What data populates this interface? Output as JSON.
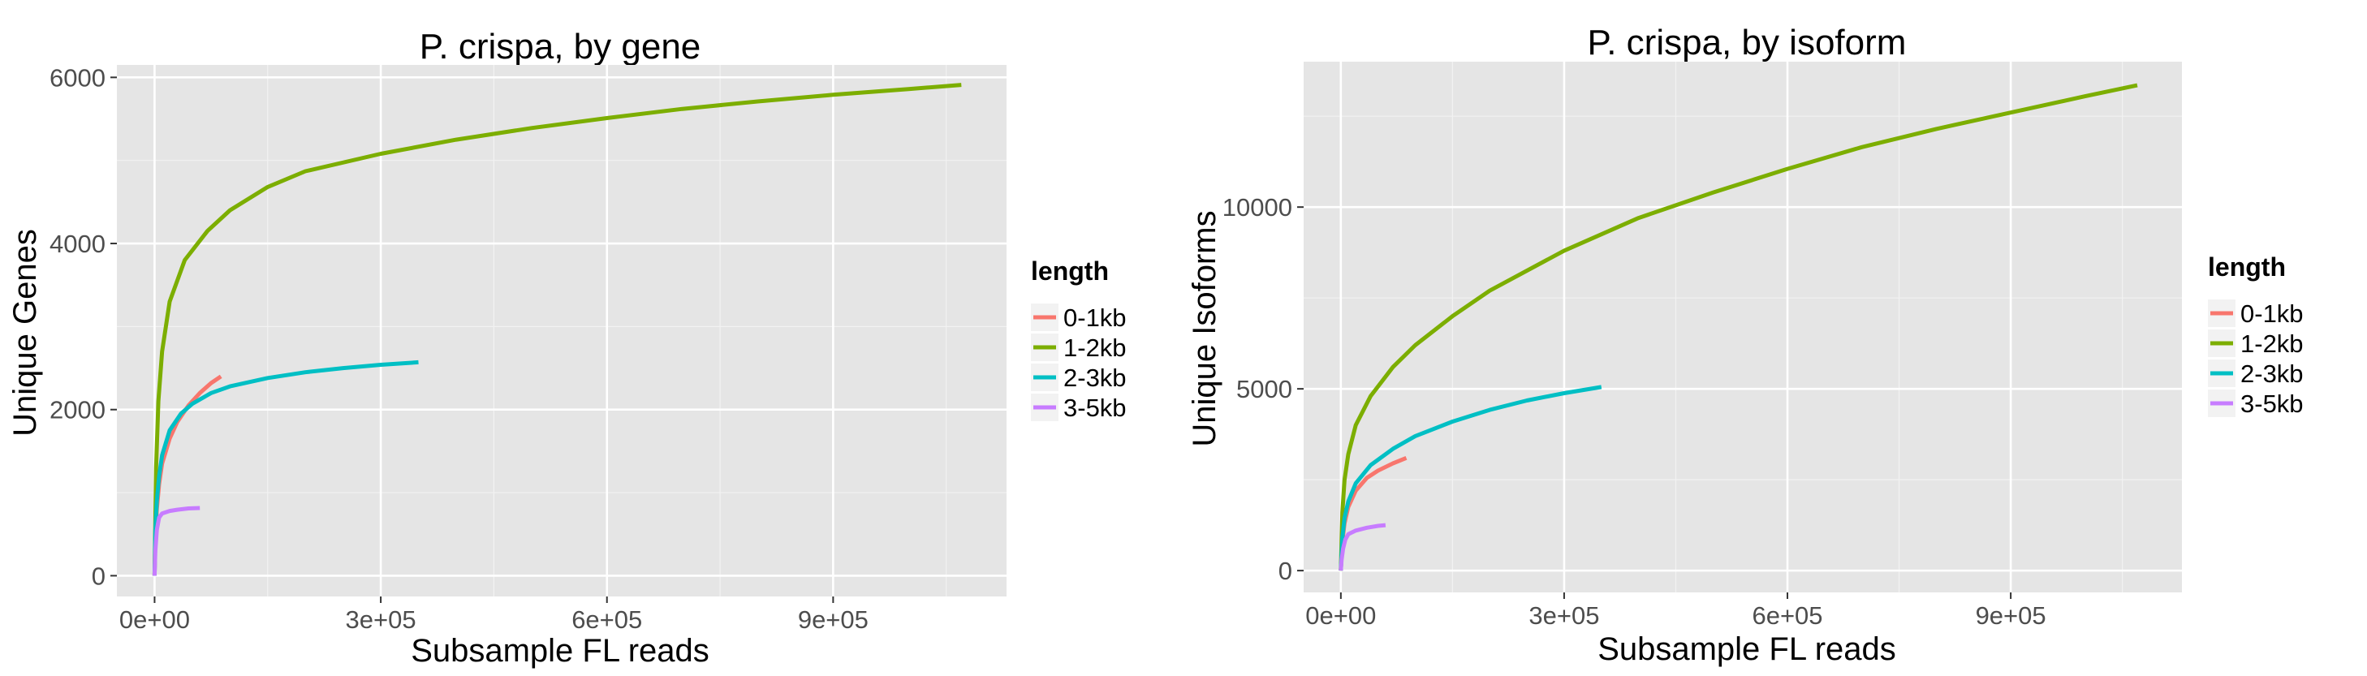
{
  "chart_data": [
    {
      "type": "line",
      "title": "P. crispa, by gene",
      "xlabel": "Subsample FL reads",
      "ylabel": "Unique Genes",
      "xlim": [
        -50000,
        1130000
      ],
      "ylim": [
        -250,
        6150
      ],
      "x_ticks": [
        0,
        300000,
        600000,
        900000
      ],
      "x_tick_labels": [
        "0e+00",
        "3e+05",
        "6e+05",
        "9e+05"
      ],
      "y_ticks": [
        0,
        2000,
        4000,
        6000
      ],
      "y_tick_labels": [
        "0",
        "2000",
        "4000",
        "6000"
      ],
      "grid": true,
      "legend_position": "right",
      "legend_title": "length",
      "series": [
        {
          "name": "0-1kb",
          "color": "#F8766D",
          "x": [
            0,
            1000,
            3000,
            6000,
            10000,
            20000,
            30000,
            45000,
            60000,
            75000,
            88000
          ],
          "y": [
            0,
            450,
            800,
            1100,
            1350,
            1650,
            1850,
            2050,
            2200,
            2320,
            2400
          ]
        },
        {
          "name": "1-2kb",
          "color": "#7CAE00",
          "x": [
            0,
            2000,
            5000,
            10000,
            20000,
            40000,
            70000,
            100000,
            150000,
            200000,
            300000,
            400000,
            500000,
            600000,
            700000,
            800000,
            900000,
            1000000,
            1070000
          ],
          "y": [
            0,
            1300,
            2100,
            2700,
            3300,
            3800,
            4150,
            4400,
            4680,
            4870,
            5080,
            5250,
            5390,
            5510,
            5620,
            5710,
            5790,
            5860,
            5910
          ]
        },
        {
          "name": "2-3kb",
          "color": "#00BFC4",
          "x": [
            0,
            1000,
            3000,
            6000,
            10000,
            20000,
            35000,
            50000,
            75000,
            100000,
            150000,
            200000,
            250000,
            300000,
            350000
          ],
          "y": [
            0,
            550,
            900,
            1200,
            1450,
            1750,
            1950,
            2070,
            2200,
            2280,
            2380,
            2450,
            2500,
            2540,
            2570
          ]
        },
        {
          "name": "3-5kb",
          "color": "#C77CFF",
          "x": [
            0,
            1000,
            3000,
            6000,
            10000,
            20000,
            30000,
            45000,
            60000
          ],
          "y": [
            0,
            300,
            550,
            700,
            750,
            780,
            795,
            810,
            815
          ]
        }
      ]
    },
    {
      "type": "line",
      "title": "P. crispa, by isoform",
      "xlabel": "Subsample FL reads",
      "ylabel": "Unique Isoforms",
      "xlim": [
        -50000,
        1130000
      ],
      "ylim": [
        -600,
        14000
      ],
      "x_ticks": [
        0,
        300000,
        600000,
        900000
      ],
      "x_tick_labels": [
        "0e+00",
        "3e+05",
        "6e+05",
        "9e+05"
      ],
      "y_ticks": [
        0,
        5000,
        10000
      ],
      "y_tick_labels": [
        "0",
        "5000",
        "10000"
      ],
      "grid": true,
      "legend_position": "right",
      "legend_title": "length",
      "series": [
        {
          "name": "0-1kb",
          "color": "#F8766D",
          "x": [
            0,
            2000,
            5000,
            10000,
            20000,
            35000,
            50000,
            70000,
            88000
          ],
          "y": [
            0,
            800,
            1300,
            1750,
            2200,
            2550,
            2750,
            2950,
            3100
          ]
        },
        {
          "name": "1-2kb",
          "color": "#7CAE00",
          "x": [
            0,
            2000,
            5000,
            10000,
            20000,
            40000,
            70000,
            100000,
            150000,
            200000,
            300000,
            400000,
            500000,
            600000,
            700000,
            800000,
            900000,
            1000000,
            1070000
          ],
          "y": [
            0,
            1600,
            2500,
            3200,
            4000,
            4800,
            5600,
            6200,
            7000,
            7700,
            8800,
            9700,
            10400,
            11050,
            11650,
            12150,
            12600,
            13050,
            13350
          ]
        },
        {
          "name": "2-3kb",
          "color": "#00BFC4",
          "x": [
            0,
            2000,
            5000,
            10000,
            20000,
            40000,
            70000,
            100000,
            150000,
            200000,
            250000,
            300000,
            350000
          ],
          "y": [
            0,
            900,
            1450,
            1900,
            2400,
            2900,
            3350,
            3700,
            4100,
            4420,
            4680,
            4880,
            5050
          ]
        },
        {
          "name": "3-5kb",
          "color": "#C77CFF",
          "x": [
            0,
            1000,
            3000,
            6000,
            10000,
            20000,
            35000,
            50000,
            60000
          ],
          "y": [
            0,
            300,
            600,
            850,
            1000,
            1100,
            1180,
            1230,
            1250
          ]
        }
      ]
    }
  ]
}
